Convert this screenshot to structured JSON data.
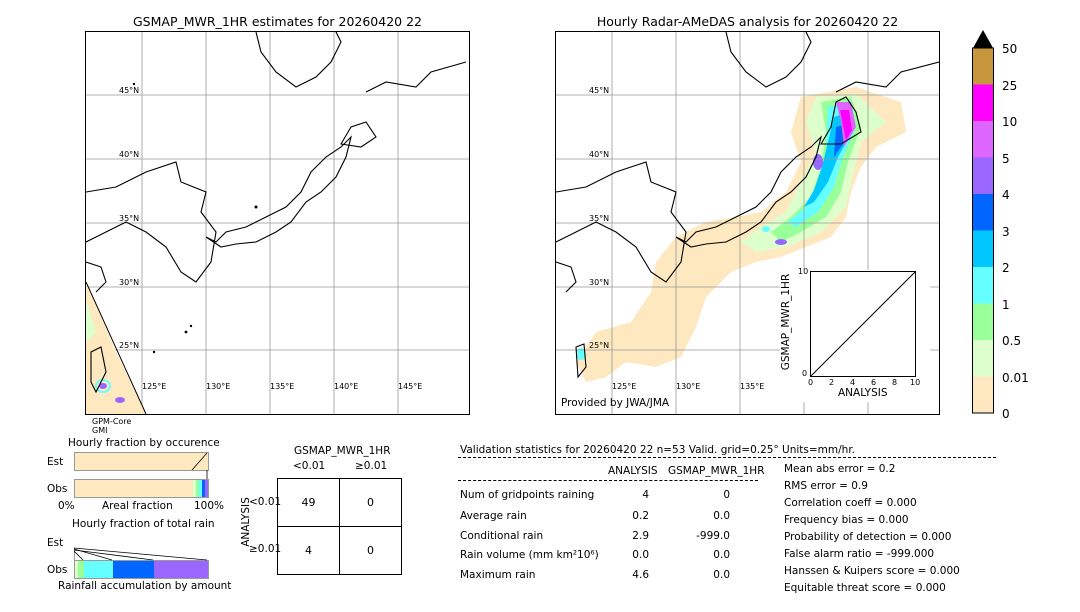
{
  "left_map": {
    "title": "GSMAP_MWR_1HR estimates for 20260420 22",
    "lat_labels": [
      "45°N",
      "40°N",
      "35°N",
      "30°N",
      "25°N"
    ],
    "lon_labels": [
      "125°E",
      "130°E",
      "135°E",
      "140°E",
      "145°E"
    ],
    "satellite_label_1": "GPM-Core",
    "satellite_label_2": "GMI"
  },
  "right_map": {
    "title": "Hourly Radar-AMeDAS analysis for 20260420 22",
    "lat_labels": [
      "45°N",
      "40°N",
      "35°N",
      "30°N",
      "25°N"
    ],
    "lon_labels": [
      "125°E",
      "130°E",
      "135°E"
    ],
    "provider": "Provided by JWA/JMA"
  },
  "scatter": {
    "ylabel": "GSMAP_MWR_1HR",
    "xlabel": "ANALYSIS",
    "ticks": [
      "0",
      "2",
      "4",
      "6",
      "8",
      "10"
    ],
    "ytick_top": "10"
  },
  "colorbar": {
    "labels": [
      "50",
      "25",
      "10",
      "5",
      "4",
      "3",
      "2",
      "1",
      "0.5",
      "0.01",
      "0"
    ],
    "colors": [
      "#c8963c",
      "#ff00ff",
      "#dd66ff",
      "#9966ff",
      "#0066ff",
      "#00c8ff",
      "#66ffff",
      "#99ff99",
      "#ddffcc",
      "#fde8c0"
    ]
  },
  "fraction_occurrence": {
    "title": "Hourly fraction by occurence",
    "est_label": "Est",
    "obs_label": "Obs",
    "axis_left": "0%",
    "axis_mid": "Areal fraction",
    "axis_right": "100%"
  },
  "fraction_total": {
    "title": "Hourly fraction of total rain",
    "est_label": "Est",
    "obs_label": "Obs",
    "caption": "Rainfall accumulation by amount"
  },
  "contingency": {
    "title": "GSMAP_MWR_1HR",
    "col_lt": "<0.01",
    "col_ge": "≥0.01",
    "row_axis": "ANALYSIS",
    "row_lt": "<0.01",
    "row_ge": "≥0.01",
    "a": "49",
    "b": "0",
    "c": "4",
    "d": "0"
  },
  "validation": {
    "header": "Validation statistics for 20260420 22  n=53 Valid. grid=0.25° Units=mm/hr.",
    "col_analysis": "ANALYSIS",
    "col_gsmap": "GSMAP_MWR_1HR",
    "rows": [
      {
        "label": "Num of gridpoints raining",
        "analysis": "4",
        "gsmap": "0"
      },
      {
        "label": "Average rain",
        "analysis": "0.2",
        "gsmap": "0.0"
      },
      {
        "label": "Conditional rain",
        "analysis": "2.9",
        "gsmap": "-999.0"
      },
      {
        "label": "Rain volume (mm km²10⁶)",
        "analysis": "0.0",
        "gsmap": "0.0"
      },
      {
        "label": "Maximum rain",
        "analysis": "4.6",
        "gsmap": "0.0"
      }
    ],
    "scores": [
      "Mean abs error =    0.2",
      "RMS error =    0.9",
      "Correlation coeff =  0.000",
      "Frequency bias =  0.000",
      "Probability of detection =  0.000",
      "False alarm ratio = -999.000",
      "Hanssen & Kuipers score =  0.000",
      "Equitable threat score =  0.000"
    ]
  }
}
